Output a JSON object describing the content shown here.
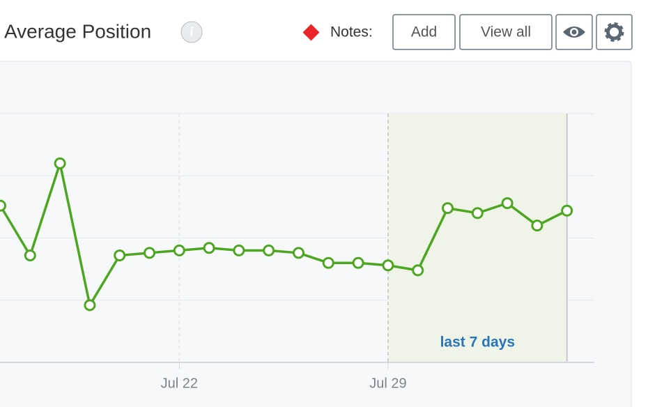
{
  "header": {
    "title": "Average Position",
    "notes_label": "Notes:",
    "buttons": [
      "Add",
      "View all"
    ]
  },
  "chart_data": {
    "type": "line",
    "categories": [
      null,
      null,
      null,
      null,
      null,
      null,
      "Jul 22",
      null,
      null,
      null,
      null,
      null,
      null,
      "Jul 29",
      null,
      null,
      null,
      null,
      null,
      null
    ],
    "values": [
      63,
      43,
      80,
      23,
      43,
      44,
      45,
      46,
      45,
      45,
      44,
      40,
      40,
      39,
      37,
      62,
      60,
      64,
      55,
      61
    ],
    "color": "#4ca61f",
    "ylim": [
      0,
      100
    ],
    "annotation": "last 7 days"
  }
}
